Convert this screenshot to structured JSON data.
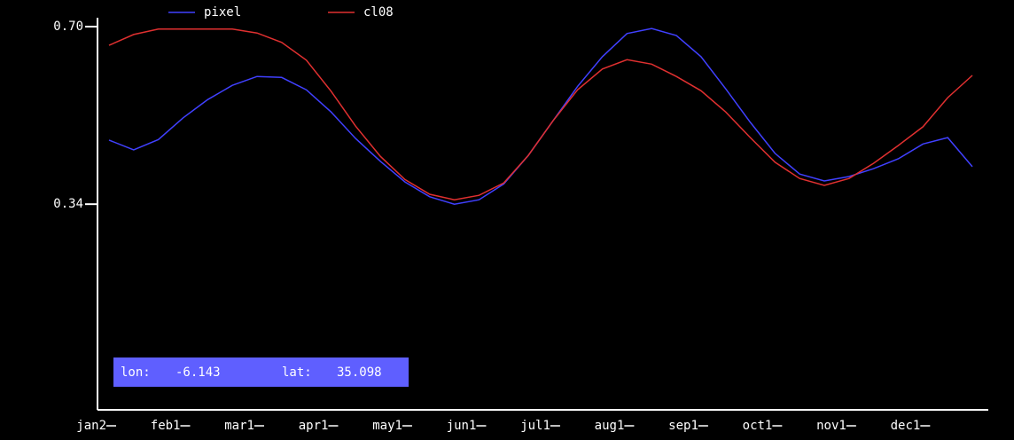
{
  "chart_data": {
    "type": "line",
    "categories": [
      "jan2",
      null,
      null,
      "feb1",
      null,
      null,
      "mar1",
      null,
      null,
      "apr1",
      null,
      null,
      "may1",
      null,
      null,
      "jun1",
      null,
      null,
      "jul1",
      null,
      null,
      "aug1",
      null,
      null,
      "sep1",
      null,
      null,
      "oct1",
      null,
      null,
      "nov1",
      null,
      null,
      "dec1",
      null,
      null
    ],
    "series": [
      {
        "name": "pixel",
        "color": "#4040ff",
        "values": [
          0.47,
          0.45,
          0.471,
          0.515,
          0.552,
          0.581,
          0.599,
          0.597,
          0.572,
          0.527,
          0.473,
          0.427,
          0.385,
          0.355,
          0.34,
          0.349,
          0.381,
          0.439,
          0.509,
          0.579,
          0.639,
          0.686,
          0.696,
          0.682,
          0.639,
          0.574,
          0.506,
          0.443,
          0.401,
          0.387,
          0.396,
          0.412,
          0.432,
          0.462,
          0.475,
          0.416
        ]
      },
      {
        "name": "cl08",
        "color": "#e03030",
        "values": [
          0.662,
          0.684,
          0.695,
          0.695,
          0.695,
          0.695,
          0.687,
          0.668,
          0.632,
          0.569,
          0.498,
          0.437,
          0.39,
          0.36,
          0.349,
          0.358,
          0.383,
          0.439,
          0.509,
          0.572,
          0.614,
          0.633,
          0.624,
          0.599,
          0.57,
          0.527,
          0.475,
          0.425,
          0.392,
          0.378,
          0.392,
          0.423,
          0.459,
          0.497,
          0.556,
          0.601
        ]
      }
    ],
    "ylim": [
      -0.077,
      0.718
    ],
    "yticks": [
      {
        "value": 0.7,
        "label": "0.70"
      },
      0.34
    ],
    "info": {
      "lon_label": "lon:",
      "lon": -6.143,
      "lat_label": "lat:",
      "lat": 35.098
    }
  }
}
